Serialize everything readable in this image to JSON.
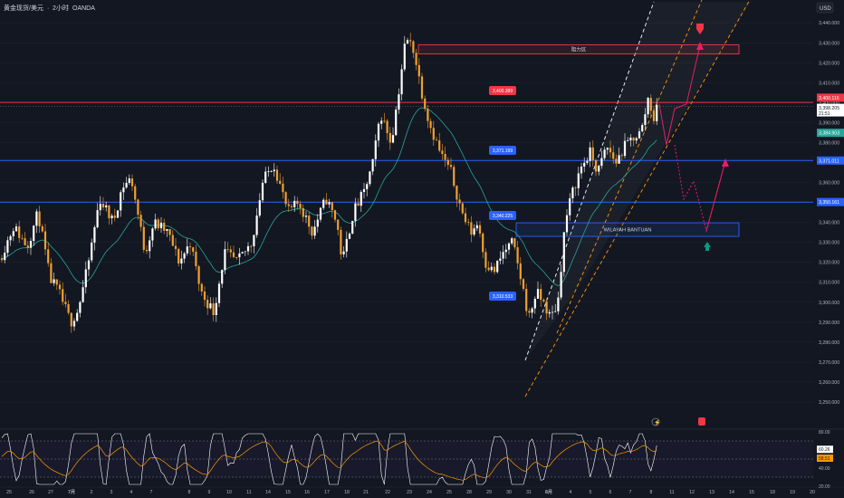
{
  "header": {
    "symbol": "黄金现货/美元",
    "sep1": "·",
    "interval": "2小时",
    "sep2": "·",
    "source": "OANDA"
  },
  "currency": "USD",
  "colors": {
    "background": "#131722",
    "candle_up": "#ffffff",
    "candle_down": "#f0a030",
    "ema": "#26a69a",
    "resistance": "#f23645",
    "support": "#2962ff",
    "channel": "#ff9800",
    "rsi": "#ffffff",
    "rsi_ma": "#ff9800"
  },
  "chart_data": {
    "type": "candlestick",
    "ylim": [
      3245,
      3446
    ],
    "y_ticks": [
      "3,440.000",
      "3,430.000",
      "3,420.000",
      "3,410.000",
      "3,400.000",
      "3,390.000",
      "3,380.000",
      "3,370.000",
      "3,360.000",
      "3,350.000",
      "3,340.000",
      "3,330.000",
      "3,320.000",
      "3,310.000",
      "3,300.000",
      "3,290.000",
      "3,280.000",
      "3,270.000",
      "3,260.000",
      "3,250.000"
    ],
    "x_ticks": [
      "25",
      "26",
      "27",
      "7月",
      "2",
      "3",
      "4",
      "7",
      "8",
      "9",
      "10",
      "11",
      "14",
      "15",
      "16",
      "17",
      "18",
      "21",
      "22",
      "23",
      "24",
      "25",
      "28",
      "29",
      "30",
      "31",
      "8月",
      "4",
      "5",
      "6",
      "7",
      "8",
      "11",
      "12",
      "13",
      "14",
      "15",
      "18",
      "19",
      "20"
    ],
    "price_labels": {
      "high_red": "3,400.116",
      "last_price": "3,398.205",
      "countdown": "21:51",
      "ema": "3,384.903",
      "line_3371": "3,371.011",
      "line_3350": "3,350.161"
    },
    "horizontal_lines": [
      {
        "price": 3400.116,
        "color": "#f23645"
      },
      {
        "price": 3371.011,
        "color": "#2962ff"
      },
      {
        "price": 3350.161,
        "color": "#2962ff"
      }
    ],
    "price_callouts": [
      {
        "text": "3,400.389",
        "color": "#f23645"
      },
      {
        "text": "3,371.199",
        "color": "#2962ff"
      },
      {
        "text": "3,340.225",
        "color": "#2962ff"
      },
      {
        "text": "3,310.533",
        "color": "#2962ff"
      }
    ],
    "zones": [
      {
        "label": "阻力区",
        "top": 3429.0,
        "bottom": 3424.4,
        "color": "#f23645"
      },
      {
        "label": "WILAYAH BANTUAN",
        "top": 3339.8,
        "bottom": 3333.0,
        "color": "#2962ff"
      }
    ],
    "rsi": {
      "ylim": [
        20,
        80
      ],
      "ticks": [
        "80.00",
        "40.00",
        "20.00"
      ],
      "value": "60.26",
      "ma_value": "58.51"
    }
  }
}
